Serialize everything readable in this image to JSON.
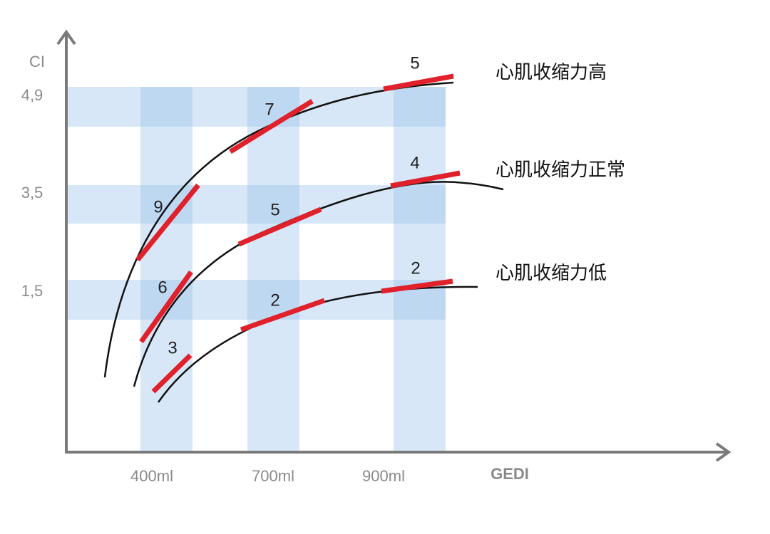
{
  "axes": {
    "y_label": "CI",
    "x_label": "GEDI",
    "y_ticks": [
      "4,9",
      "3,5",
      "1,5"
    ],
    "x_ticks": [
      "400ml",
      "700ml",
      "900ml"
    ]
  },
  "curves": [
    {
      "label": "心肌收缩力高",
      "slopes": [
        9,
        7,
        5
      ]
    },
    {
      "label": "心肌收缩力正常",
      "slopes": [
        6,
        5,
        4
      ]
    },
    {
      "label": "心肌收缩力低",
      "slopes": [
        3,
        2,
        2
      ]
    }
  ]
}
